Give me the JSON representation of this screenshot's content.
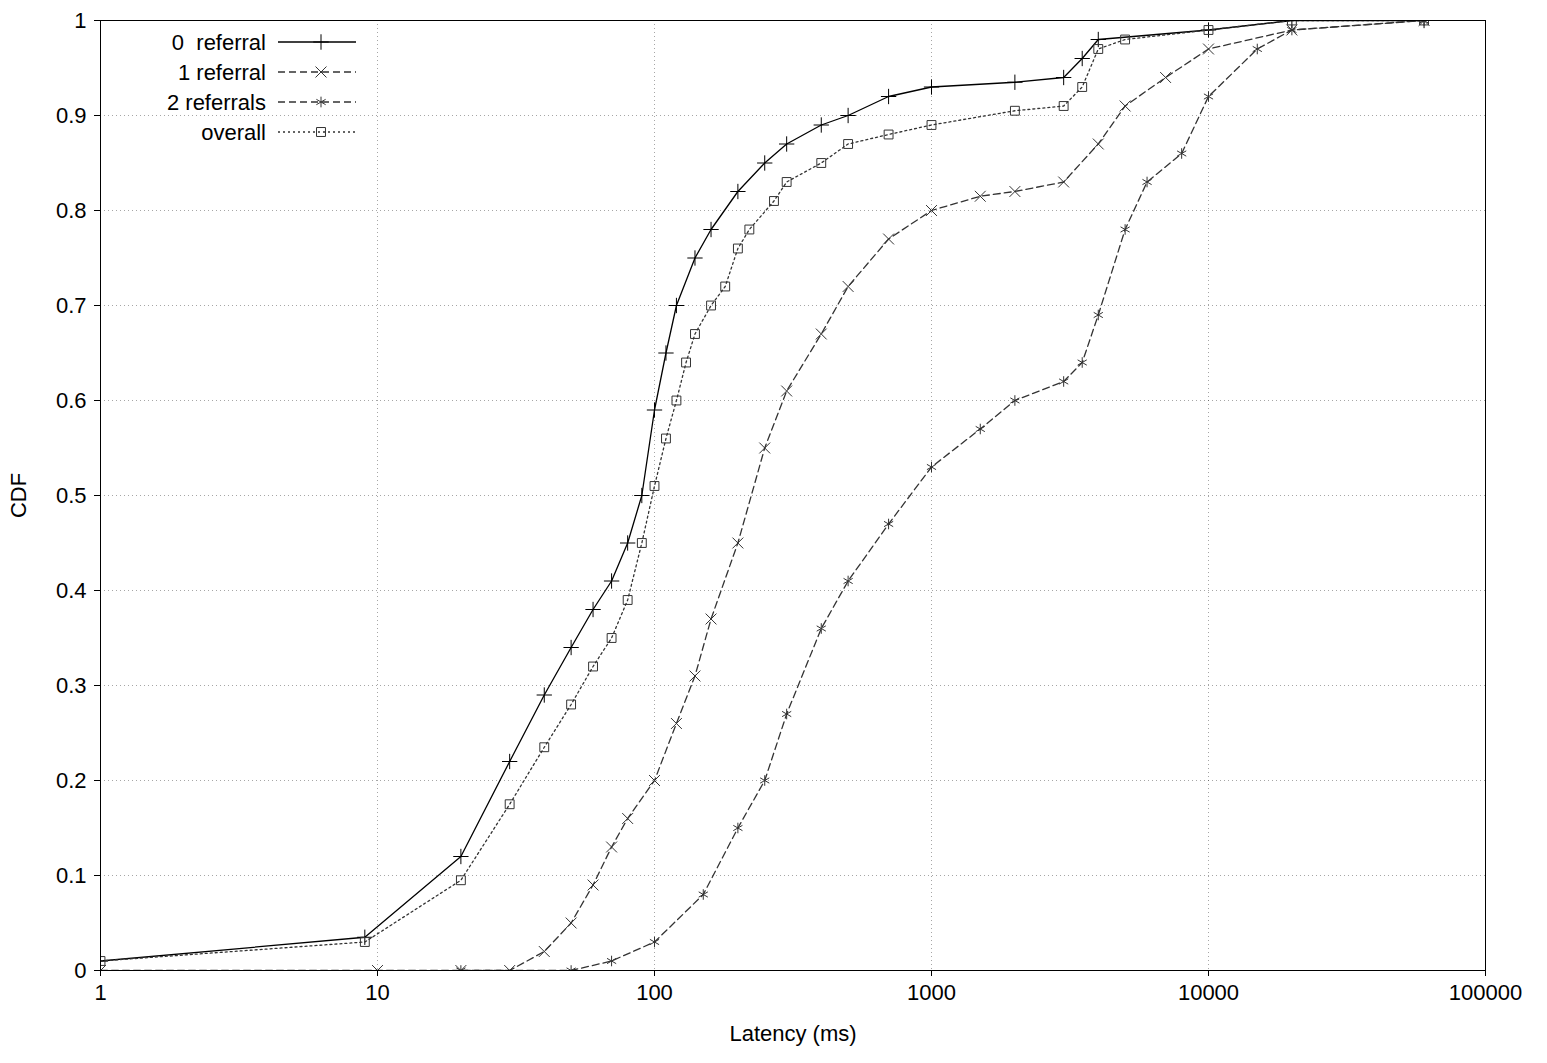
{
  "chart_data": {
    "type": "line",
    "x_label": "Latency (ms)",
    "y_label": "CDF",
    "log": "x",
    "grid": true,
    "legend": "top-left",
    "xlim": [
      1,
      100000
    ],
    "xticks": [
      1,
      10,
      100,
      1000,
      10000,
      100000
    ],
    "ylim": [
      0,
      1
    ],
    "yticks": [
      0,
      0.1,
      0.2,
      0.3,
      0.4,
      0.5,
      0.6,
      0.7,
      0.8,
      0.9,
      1
    ],
    "series": [
      {
        "name": "0  referral",
        "color": "#000000",
        "marker": "plus",
        "line_style": "solid",
        "x": [
          1,
          9,
          20,
          30,
          40,
          50,
          60,
          70,
          80,
          90,
          100,
          110,
          120,
          140,
          160,
          200,
          250,
          300,
          400,
          500,
          700,
          1000,
          2000,
          3000,
          3500,
          4000,
          10000,
          20000,
          60000
        ],
        "values": [
          0.01,
          0.035,
          0.12,
          0.22,
          0.29,
          0.34,
          0.38,
          0.41,
          0.45,
          0.5,
          0.59,
          0.65,
          0.7,
          0.75,
          0.78,
          0.82,
          0.85,
          0.87,
          0.89,
          0.9,
          0.92,
          0.93,
          0.935,
          0.94,
          0.96,
          0.98,
          0.99,
          1,
          1
        ]
      },
      {
        "name": "1 referral",
        "color": "#333333",
        "marker": "times",
        "line_style": "dashed",
        "x": [
          1,
          10,
          20,
          30,
          40,
          50,
          60,
          70,
          80,
          100,
          120,
          140,
          160,
          200,
          250,
          300,
          400,
          500,
          700,
          1000,
          1500,
          2000,
          3000,
          4000,
          5000,
          7000,
          10000,
          20000,
          60000
        ],
        "values": [
          0,
          0,
          0,
          0,
          0.02,
          0.05,
          0.09,
          0.13,
          0.16,
          0.2,
          0.26,
          0.31,
          0.37,
          0.45,
          0.55,
          0.61,
          0.67,
          0.72,
          0.77,
          0.8,
          0.815,
          0.82,
          0.83,
          0.87,
          0.91,
          0.94,
          0.97,
          0.99,
          1
        ]
      },
      {
        "name": "2 referrals",
        "color": "#333333",
        "marker": "asterisk",
        "line_style": "dashed",
        "x": [
          20,
          50,
          70,
          100,
          150,
          200,
          250,
          300,
          400,
          500,
          700,
          1000,
          1500,
          2000,
          3000,
          3500,
          4000,
          5000,
          6000,
          8000,
          10000,
          15000,
          20000,
          60000
        ],
        "values": [
          0,
          0,
          0.01,
          0.03,
          0.08,
          0.15,
          0.2,
          0.27,
          0.36,
          0.41,
          0.47,
          0.53,
          0.57,
          0.6,
          0.62,
          0.64,
          0.69,
          0.78,
          0.83,
          0.86,
          0.92,
          0.97,
          0.99,
          1
        ]
      },
      {
        "name": "overall",
        "color": "#333333",
        "marker": "square",
        "line_style": "dotted",
        "x": [
          1,
          9,
          20,
          30,
          40,
          50,
          60,
          70,
          80,
          90,
          100,
          110,
          120,
          130,
          140,
          160,
          180,
          200,
          220,
          270,
          300,
          400,
          500,
          700,
          1000,
          2000,
          3000,
          3500,
          4000,
          5000,
          10000,
          20000,
          60000
        ],
        "values": [
          0.01,
          0.03,
          0.095,
          0.175,
          0.235,
          0.28,
          0.32,
          0.35,
          0.39,
          0.45,
          0.51,
          0.56,
          0.6,
          0.64,
          0.67,
          0.7,
          0.72,
          0.76,
          0.78,
          0.81,
          0.83,
          0.85,
          0.87,
          0.88,
          0.89,
          0.905,
          0.91,
          0.93,
          0.97,
          0.98,
          0.99,
          1,
          1
        ]
      }
    ]
  }
}
